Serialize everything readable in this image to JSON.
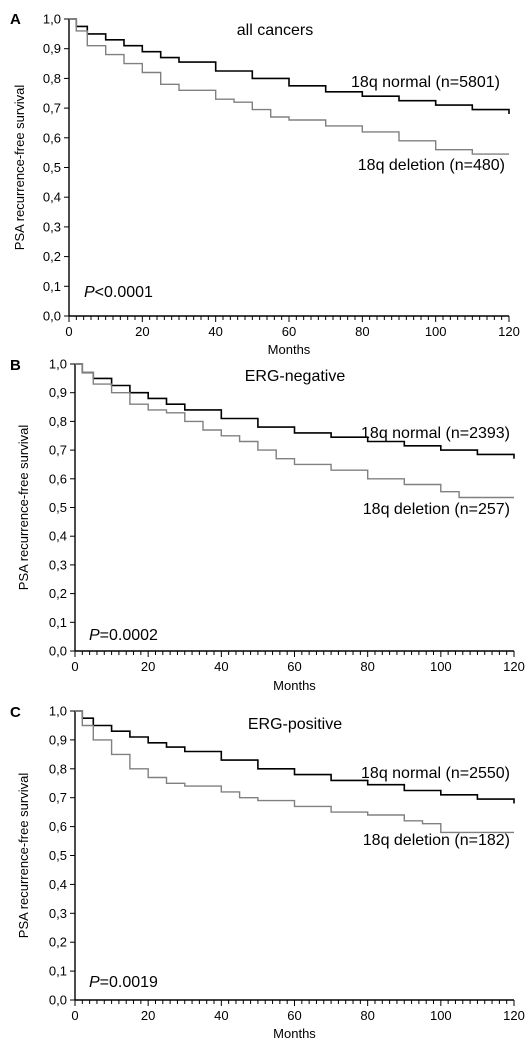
{
  "chart_data": [
    {
      "type": "line",
      "panel": "A",
      "subtitle": "all cancers",
      "xlabel": "Months",
      "ylabel": "PSA recurrence-free survival",
      "xlim": [
        0,
        120
      ],
      "ylim": [
        0,
        1
      ],
      "x_ticks": [
        "0",
        "20",
        "40",
        "60",
        "80",
        "100",
        "120"
      ],
      "y_ticks": [
        "0,0",
        "0,1",
        "0,2",
        "0,3",
        "0,4",
        "0,5",
        "0,6",
        "0,7",
        "0,8",
        "0,9",
        "1,0"
      ],
      "p_value": {
        "italic": "P",
        "rest": "<0.0001"
      },
      "series": [
        {
          "name": "18q normal (n=5801)",
          "color": "#000000",
          "x": [
            0,
            2,
            5,
            10,
            15,
            20,
            25,
            30,
            40,
            50,
            60,
            70,
            80,
            90,
            100,
            110,
            120
          ],
          "y": [
            1.0,
            0.975,
            0.95,
            0.93,
            0.91,
            0.89,
            0.87,
            0.855,
            0.825,
            0.8,
            0.775,
            0.755,
            0.74,
            0.725,
            0.71,
            0.695,
            0.68
          ]
        },
        {
          "name": "18q deletion (n=480)",
          "color": "#808080",
          "x": [
            0,
            2,
            5,
            10,
            15,
            20,
            25,
            30,
            40,
            45,
            50,
            55,
            60,
            70,
            80,
            90,
            100,
            110,
            120
          ],
          "y": [
            1.0,
            0.96,
            0.91,
            0.88,
            0.85,
            0.82,
            0.78,
            0.76,
            0.73,
            0.72,
            0.695,
            0.67,
            0.66,
            0.64,
            0.62,
            0.59,
            0.56,
            0.545,
            0.545
          ]
        }
      ]
    },
    {
      "type": "line",
      "panel": "B",
      "subtitle": "ERG-negative",
      "xlabel": "Months",
      "ylabel": "PSA recurrence-free survival",
      "xlim": [
        0,
        120
      ],
      "ylim": [
        0,
        1
      ],
      "x_ticks": [
        "0",
        "20",
        "40",
        "60",
        "80",
        "100",
        "120"
      ],
      "y_ticks": [
        "0,0",
        "0,1",
        "0,2",
        "0,3",
        "0,4",
        "0,5",
        "0,6",
        "0,7",
        "0,8",
        "0,9",
        "1,0"
      ],
      "p_value": {
        "italic": "P",
        "rest": "=0.0002"
      },
      "series": [
        {
          "name": "18q normal (n=2393)",
          "color": "#000000",
          "x": [
            0,
            2,
            5,
            10,
            15,
            20,
            25,
            30,
            40,
            50,
            60,
            70,
            80,
            90,
            100,
            110,
            120
          ],
          "y": [
            1.0,
            0.97,
            0.95,
            0.925,
            0.9,
            0.88,
            0.86,
            0.84,
            0.81,
            0.78,
            0.76,
            0.745,
            0.73,
            0.715,
            0.7,
            0.685,
            0.67
          ]
        },
        {
          "name": "18q deletion (n=257)",
          "color": "#808080",
          "x": [
            0,
            2,
            5,
            10,
            15,
            20,
            25,
            30,
            35,
            40,
            45,
            50,
            55,
            60,
            70,
            80,
            90,
            100,
            105,
            110,
            120
          ],
          "y": [
            1.0,
            0.97,
            0.93,
            0.9,
            0.86,
            0.84,
            0.83,
            0.8,
            0.77,
            0.75,
            0.73,
            0.7,
            0.67,
            0.65,
            0.63,
            0.6,
            0.58,
            0.555,
            0.535,
            0.535,
            0.535
          ]
        }
      ]
    },
    {
      "type": "line",
      "panel": "C",
      "subtitle": "ERG-positive",
      "xlabel": "Months",
      "ylabel": "PSA recurrence-free survival",
      "xlim": [
        0,
        120
      ],
      "ylim": [
        0,
        1
      ],
      "x_ticks": [
        "0",
        "20",
        "40",
        "60",
        "80",
        "100",
        "120"
      ],
      "y_ticks": [
        "0,0",
        "0,1",
        "0,2",
        "0,3",
        "0,4",
        "0,5",
        "0,6",
        "0,7",
        "0,8",
        "0,9",
        "1,0"
      ],
      "p_value": {
        "italic": "P",
        "rest": "=0.0019"
      },
      "series": [
        {
          "name": "18q normal (n=2550)",
          "color": "#000000",
          "x": [
            0,
            2,
            5,
            10,
            15,
            20,
            25,
            30,
            40,
            50,
            60,
            70,
            80,
            90,
            100,
            110,
            120
          ],
          "y": [
            1.0,
            0.975,
            0.95,
            0.93,
            0.91,
            0.89,
            0.875,
            0.86,
            0.83,
            0.8,
            0.78,
            0.76,
            0.745,
            0.725,
            0.71,
            0.695,
            0.68
          ]
        },
        {
          "name": "18q deletion (n=182)",
          "color": "#808080",
          "x": [
            0,
            2,
            5,
            10,
            15,
            20,
            25,
            30,
            40,
            45,
            50,
            60,
            70,
            80,
            90,
            95,
            100,
            110,
            120
          ],
          "y": [
            1.0,
            0.95,
            0.9,
            0.85,
            0.8,
            0.77,
            0.75,
            0.74,
            0.72,
            0.7,
            0.69,
            0.67,
            0.65,
            0.64,
            0.62,
            0.61,
            0.58,
            0.58,
            0.58
          ]
        }
      ]
    }
  ]
}
